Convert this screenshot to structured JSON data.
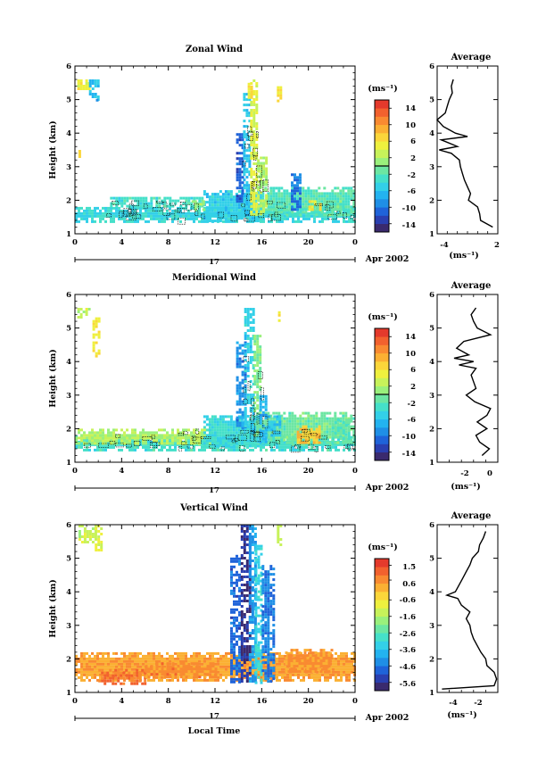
{
  "colors": [
    "#3a2a6e",
    "#2a3fb0",
    "#1f63d9",
    "#1f8fe6",
    "#23b3f0",
    "#33d0e8",
    "#45e0c9",
    "#6ce6a2",
    "#9af07c",
    "#c7f25a",
    "#eef03e",
    "#fbd63a",
    "#fbb033",
    "#f98a31",
    "#f2612e",
    "#e43a2c"
  ],
  "panels": [
    {
      "title": "Zonal Wind",
      "ylabel": "Height (km)",
      "xlabel": "",
      "date_label": "Apr 2002",
      "day_label": "17",
      "unit_label": "(ms⁻¹)",
      "colorbar_ticks": [
        "14",
        "10",
        "6",
        "2",
        "-2",
        "-6",
        "-10",
        "-14"
      ],
      "colorbar_range": [
        -16,
        16
      ],
      "colorbar_zero_line": 0,
      "avg_title": "Average",
      "avg_xlabel": "(ms⁻¹)",
      "avg_xticks": [
        "-4",
        "2"
      ]
    },
    {
      "title": "Meridional Wind",
      "ylabel": "Height (km)",
      "xlabel": "",
      "date_label": "Apr 2002",
      "day_label": "17",
      "unit_label": "(ms⁻¹)",
      "colorbar_ticks": [
        "14",
        "10",
        "6",
        "2",
        "-2",
        "-6",
        "-10",
        "-14"
      ],
      "colorbar_range": [
        -16,
        16
      ],
      "colorbar_zero_line": 0,
      "avg_title": "Average",
      "avg_xlabel": "(ms⁻¹)",
      "avg_xticks": [
        "-2",
        "0"
      ]
    },
    {
      "title": "Vertical Wind",
      "ylabel": "Height (km)",
      "xlabel": "Local Time",
      "date_label": "Apr 2002",
      "day_label": "17",
      "unit_label": "(ms⁻¹)",
      "colorbar_ticks": [
        "1.5",
        "0.6",
        "-0.6",
        "-1.6",
        "-2.6",
        "-3.6",
        "-4.6",
        "-5.6"
      ],
      "colorbar_range": [
        -6.1,
        1.9
      ],
      "colorbar_zero_line": null,
      "avg_title": "Average",
      "avg_xlabel": "(ms⁻¹)",
      "avg_xticks": [
        "-4",
        "-2"
      ]
    }
  ],
  "chart_data": [
    {
      "type": "heatmap",
      "title": "Zonal Wind",
      "ylabel": "Height (km)",
      "xlim": [
        0,
        24
      ],
      "ylim": [
        1,
        6
      ],
      "x_ticks": [
        "0",
        "4",
        "8",
        "12",
        "16",
        "20",
        "0"
      ],
      "y_ticks": [
        "1",
        "2",
        "3",
        "4",
        "5",
        "6"
      ],
      "colorbar": {
        "range": [
          -16,
          16
        ],
        "ticks": [
          14,
          10,
          6,
          2,
          -2,
          -6,
          -10,
          -14
        ]
      },
      "regions": [
        {
          "x": [
            0.0,
            24.0
          ],
          "y": [
            1.4,
            1.8
          ],
          "v": -4
        },
        {
          "x": [
            3.0,
            11.0
          ],
          "y": [
            1.8,
            2.1
          ],
          "v": -3
        },
        {
          "x": [
            11.0,
            16.0
          ],
          "y": [
            1.4,
            2.3
          ],
          "v": -5
        },
        {
          "x": [
            16.0,
            24.0
          ],
          "y": [
            1.6,
            2.4
          ],
          "v": -2
        },
        {
          "x": [
            13.8,
            14.4
          ],
          "y": [
            2.0,
            4.0
          ],
          "v": -11
        },
        {
          "x": [
            14.4,
            15.0
          ],
          "y": [
            1.6,
            5.2
          ],
          "v": -6
        },
        {
          "x": [
            15.0,
            15.6
          ],
          "y": [
            1.6,
            5.6
          ],
          "v": 4
        },
        {
          "x": [
            15.6,
            16.4
          ],
          "y": [
            1.6,
            3.3
          ],
          "v": 2
        },
        {
          "x": [
            14.8,
            15.2
          ],
          "y": [
            5.1,
            5.5
          ],
          "v": 6
        },
        {
          "x": [
            18.5,
            19.4
          ],
          "y": [
            1.7,
            2.8
          ],
          "v": -10
        },
        {
          "x": [
            0.2,
            1.2
          ],
          "y": [
            5.3,
            5.6
          ],
          "v": 5
        },
        {
          "x": [
            1.2,
            2.0
          ],
          "y": [
            5.0,
            5.6
          ],
          "v": -6
        },
        {
          "x": [
            1.8,
            2.0
          ],
          "y": [
            4.9,
            5.1
          ],
          "v": -8
        },
        {
          "x": [
            0.3,
            0.5
          ],
          "y": [
            3.2,
            3.5
          ],
          "v": 6
        },
        {
          "x": [
            17.3,
            17.6
          ],
          "y": [
            5.0,
            5.4
          ],
          "v": 6
        },
        {
          "x": [
            20.0,
            21.0
          ],
          "y": [
            1.7,
            2.0
          ],
          "v": 6
        },
        {
          "x": [
            21.5,
            23.0
          ],
          "y": [
            1.6,
            2.0
          ],
          "v": -1
        },
        {
          "x": [
            10.0,
            11.0
          ],
          "y": [
            1.7,
            2.0
          ],
          "v": 1
        }
      ],
      "average": {
        "xlim": [
          -4,
          2
        ],
        "height": [
          1.2,
          1.4,
          1.6,
          1.8,
          2.0,
          2.2,
          2.4,
          2.6,
          2.8,
          3.0,
          3.2,
          3.4,
          3.5,
          3.6,
          3.8,
          3.9,
          4.0,
          4.2,
          4.4,
          4.6,
          4.8,
          5.0,
          5.2,
          5.4,
          5.6
        ],
        "value": [
          1.5,
          0.3,
          0.2,
          0.0,
          -0.9,
          -0.7,
          -1.0,
          -1.3,
          -1.5,
          -1.7,
          -1.8,
          -2.6,
          -3.8,
          -2.0,
          -3.6,
          -1.0,
          -2.2,
          -3.4,
          -4.0,
          -3.2,
          -3.0,
          -2.8,
          -2.5,
          -2.6,
          -2.4
        ]
      }
    },
    {
      "type": "heatmap",
      "title": "Meridional Wind",
      "ylabel": "Height (km)",
      "xlim": [
        0,
        24
      ],
      "ylim": [
        1,
        6
      ],
      "x_ticks": [
        "0",
        "4",
        "8",
        "12",
        "16",
        "20",
        "0"
      ],
      "y_ticks": [
        "1",
        "2",
        "3",
        "4",
        "5",
        "6"
      ],
      "colorbar": {
        "range": [
          -16,
          16
        ],
        "ticks": [
          14,
          10,
          6,
          2,
          -2,
          -6,
          -10,
          -14
        ]
      },
      "regions": [
        {
          "x": [
            0.0,
            24.0
          ],
          "y": [
            1.4,
            1.8
          ],
          "v": -3
        },
        {
          "x": [
            0.0,
            12.0
          ],
          "y": [
            1.6,
            2.0
          ],
          "v": 2
        },
        {
          "x": [
            11.0,
            16.0
          ],
          "y": [
            1.5,
            2.4
          ],
          "v": -4
        },
        {
          "x": [
            16.0,
            24.0
          ],
          "y": [
            1.6,
            2.5
          ],
          "v": -1
        },
        {
          "x": [
            13.8,
            14.5
          ],
          "y": [
            2.0,
            4.6
          ],
          "v": -9
        },
        {
          "x": [
            14.5,
            15.3
          ],
          "y": [
            1.7,
            5.6
          ],
          "v": -5
        },
        {
          "x": [
            15.3,
            15.8
          ],
          "y": [
            1.8,
            4.8
          ],
          "v": 0
        },
        {
          "x": [
            15.8,
            16.3
          ],
          "y": [
            1.6,
            3.0
          ],
          "v": -7
        },
        {
          "x": [
            16.3,
            17.5
          ],
          "y": [
            1.8,
            2.4
          ],
          "v": -6
        },
        {
          "x": [
            0.2,
            1.2
          ],
          "y": [
            5.3,
            5.6
          ],
          "v": 3
        },
        {
          "x": [
            1.5,
            2.0
          ],
          "y": [
            4.2,
            5.4
          ],
          "v": 6
        },
        {
          "x": [
            17.4,
            17.6
          ],
          "y": [
            5.2,
            5.5
          ],
          "v": 6
        },
        {
          "x": [
            19.0,
            21.0
          ],
          "y": [
            1.6,
            2.1
          ],
          "v": 8
        },
        {
          "x": [
            22.0,
            23.5
          ],
          "y": [
            1.7,
            2.3
          ],
          "v": -2
        }
      ],
      "average": {
        "xlim": [
          -4,
          1
        ],
        "height": [
          1.2,
          1.4,
          1.6,
          1.8,
          2.0,
          2.2,
          2.4,
          2.6,
          2.8,
          3.0,
          3.2,
          3.4,
          3.6,
          3.8,
          3.9,
          4.0,
          4.1,
          4.2,
          4.4,
          4.6,
          4.8,
          5.0,
          5.2,
          5.4,
          5.6
        ],
        "value": [
          -0.3,
          0.3,
          -0.5,
          -0.8,
          0.1,
          -0.7,
          0.1,
          0.4,
          -0.9,
          -1.6,
          -0.8,
          -1.0,
          -1.2,
          -0.8,
          -2.2,
          -1.0,
          -2.6,
          -1.4,
          -2.4,
          -1.8,
          0.4,
          -0.7,
          -1.0,
          -1.2,
          -0.8
        ]
      }
    },
    {
      "type": "heatmap",
      "title": "Vertical Wind",
      "xlabel": "Local Time",
      "ylabel": "Height (km)",
      "xlim": [
        0,
        24
      ],
      "ylim": [
        1,
        6
      ],
      "x_ticks": [
        "0",
        "4",
        "8",
        "12",
        "16",
        "20",
        "0"
      ],
      "y_ticks": [
        "1",
        "2",
        "3",
        "4",
        "5",
        "6"
      ],
      "colorbar": {
        "range": [
          -6.1,
          1.9
        ],
        "ticks": [
          1.5,
          0.6,
          -0.6,
          -1.6,
          -2.6,
          -3.6,
          -4.6,
          -5.6
        ]
      },
      "regions": [
        {
          "x": [
            0.0,
            24.0
          ],
          "y": [
            1.4,
            2.2
          ],
          "v": 0.3
        },
        {
          "x": [
            2.0,
            6.0
          ],
          "y": [
            1.3,
            1.7
          ],
          "v": 0.9
        },
        {
          "x": [
            6.0,
            12.0
          ],
          "y": [
            1.5,
            1.9
          ],
          "v": 0.6
        },
        {
          "x": [
            18.0,
            22.0
          ],
          "y": [
            1.6,
            2.3
          ],
          "v": 0.5
        },
        {
          "x": [
            13.3,
            14.2
          ],
          "y": [
            1.3,
            5.1
          ],
          "v": -4.8
        },
        {
          "x": [
            14.2,
            14.9
          ],
          "y": [
            1.3,
            6.0
          ],
          "v": -5.6
        },
        {
          "x": [
            14.9,
            15.4
          ],
          "y": [
            1.3,
            6.0
          ],
          "v": -4.2
        },
        {
          "x": [
            15.4,
            16.0
          ],
          "y": [
            1.3,
            5.4
          ],
          "v": -3.2
        },
        {
          "x": [
            16.0,
            17.0
          ],
          "y": [
            1.3,
            4.8
          ],
          "v": -4.5
        },
        {
          "x": [
            0.3,
            1.7
          ],
          "y": [
            5.5,
            6.0
          ],
          "v": -1.3
        },
        {
          "x": [
            1.7,
            2.2
          ],
          "y": [
            5.2,
            6.0
          ],
          "v": -1.0
        },
        {
          "x": [
            17.3,
            17.6
          ],
          "y": [
            5.4,
            6.0
          ],
          "v": -1.3
        }
      ],
      "average": {
        "xlim": [
          -5,
          0
        ],
        "height": [
          1.1,
          1.2,
          1.4,
          1.6,
          1.8,
          2.0,
          2.2,
          2.4,
          2.6,
          2.8,
          3.0,
          3.2,
          3.4,
          3.6,
          3.8,
          3.9,
          4.0,
          4.2,
          4.4,
          4.6,
          4.8,
          5.0,
          5.2,
          5.4,
          5.6,
          5.8
        ],
        "value": [
          -4.6,
          -0.3,
          -0.1,
          -0.3,
          -0.9,
          -1.0,
          -1.4,
          -1.7,
          -2.0,
          -2.2,
          -2.3,
          -2.6,
          -2.3,
          -3.0,
          -3.3,
          -4.2,
          -3.5,
          -3.2,
          -2.9,
          -2.6,
          -2.3,
          -2.1,
          -1.6,
          -1.5,
          -1.2,
          -1.0
        ]
      }
    }
  ]
}
